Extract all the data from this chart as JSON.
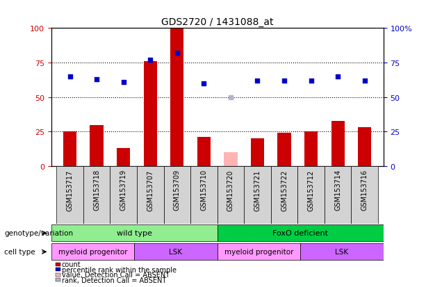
{
  "title": "GDS2720 / 1431088_at",
  "samples": [
    "GSM153717",
    "GSM153718",
    "GSM153719",
    "GSM153707",
    "GSM153709",
    "GSM153710",
    "GSM153720",
    "GSM153721",
    "GSM153722",
    "GSM153712",
    "GSM153714",
    "GSM153716"
  ],
  "counts": [
    25,
    30,
    13,
    76,
    100,
    21,
    null,
    20,
    24,
    25,
    33,
    28
  ],
  "counts_absent": [
    null,
    null,
    null,
    null,
    null,
    null,
    10,
    null,
    null,
    null,
    null,
    null
  ],
  "ranks": [
    65,
    63,
    61,
    77,
    82,
    60,
    null,
    62,
    62,
    62,
    65,
    62
  ],
  "ranks_absent": [
    null,
    null,
    null,
    null,
    null,
    null,
    50,
    null,
    null,
    null,
    null,
    null
  ],
  "count_color": "#cc0000",
  "rank_color": "#0000cc",
  "count_absent_color": "#ffb3b3",
  "rank_absent_color": "#b3b3cc",
  "ylim_left": [
    0,
    100
  ],
  "ylim_right": [
    0,
    100
  ],
  "yticks_left": [
    0,
    25,
    50,
    75,
    100
  ],
  "yticks_right": [
    0,
    25,
    50,
    75,
    100
  ],
  "genotype_groups": [
    {
      "label": "wild type",
      "start": 0,
      "end": 6,
      "color": "#90ee90"
    },
    {
      "label": "FoxO deficient",
      "start": 6,
      "end": 12,
      "color": "#00cc44"
    }
  ],
  "cell_type_groups": [
    {
      "label": "myeloid progenitor",
      "start": 0,
      "end": 3,
      "color": "#ff99ff"
    },
    {
      "label": "LSK",
      "start": 3,
      "end": 6,
      "color": "#cc66ff"
    },
    {
      "label": "myeloid progenitor",
      "start": 6,
      "end": 9,
      "color": "#ff99ff"
    },
    {
      "label": "LSK",
      "start": 9,
      "end": 12,
      "color": "#cc66ff"
    }
  ],
  "legend_items": [
    {
      "label": "count",
      "color": "#cc0000",
      "marker": "s"
    },
    {
      "label": "percentile rank within the sample",
      "color": "#0000cc",
      "marker": "s"
    },
    {
      "label": "value, Detection Call = ABSENT",
      "color": "#ffb3b3",
      "marker": "s"
    },
    {
      "label": "rank, Detection Call = ABSENT",
      "color": "#b3b3cc",
      "marker": "s"
    }
  ],
  "bar_width": 0.5,
  "marker_size": 8,
  "background_color": "#ffffff",
  "plot_bg_color": "#ffffff",
  "grid_color": "#000000",
  "annotation_label_genotype": "genotype/variation",
  "annotation_label_celltype": "cell type",
  "row_bg_color": "#d3d3d3"
}
